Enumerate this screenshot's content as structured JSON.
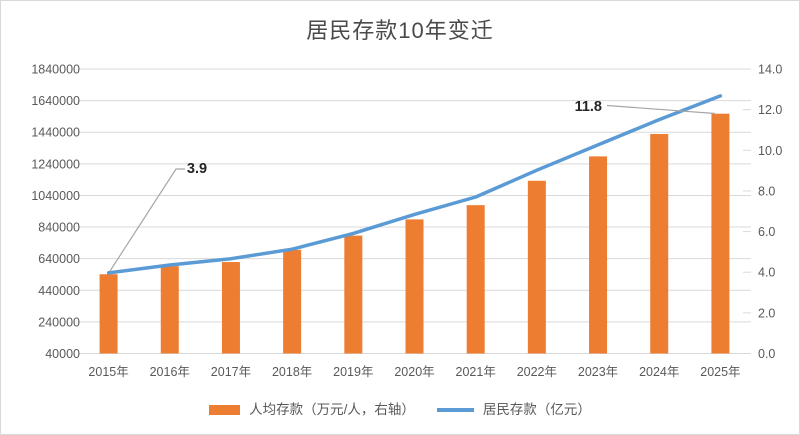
{
  "title": "居民存款10年变迁",
  "colors": {
    "bar": "#ED7D31",
    "line": "#5B9BD5",
    "grid": "#D9D9D9",
    "axis_text": "#595959",
    "title_text": "#4a4a4a",
    "annotation_text": "#262626",
    "leader": "#A6A6A6",
    "frame_border": "#D9D9D9",
    "background": "#FFFFFF"
  },
  "chart_data": {
    "type": "bar",
    "combo": true,
    "title": "居民存款10年变迁",
    "categories": [
      "2015年",
      "2016年",
      "2017年",
      "2018年",
      "2019年",
      "2020年",
      "2021年",
      "2022年",
      "2023年",
      "2024年",
      "2025年"
    ],
    "series": [
      {
        "name": "人均存款（万元/人，右轴）",
        "type": "bar",
        "axis": "right",
        "values": [
          3.9,
          4.3,
          4.5,
          5.1,
          5.8,
          6.6,
          7.3,
          8.5,
          9.7,
          10.8,
          11.8
        ]
      },
      {
        "name": "居民存款（亿元）",
        "type": "line",
        "axis": "left",
        "values": [
          550000,
          600000,
          640000,
          700000,
          800000,
          920000,
          1030000,
          1200000,
          1360000,
          1520000,
          1670000
        ]
      }
    ],
    "left_axis": {
      "min": 40000,
      "max": 1840000,
      "step": 200000,
      "tick_labels": [
        "1840000",
        "1640000",
        "1440000",
        "1240000",
        "1040000",
        "840000",
        "640000",
        "440000",
        "240000",
        "40000"
      ]
    },
    "right_axis": {
      "min": 0,
      "max": 14,
      "step": 2,
      "tick_labels": [
        "14.0",
        "12.0",
        "10.0",
        "8.0",
        "6.0",
        "4.0",
        "2.0",
        "0.0"
      ]
    },
    "annotations": [
      {
        "text": "3.9",
        "series": "人均存款（万元/人，右轴）",
        "category": "2015年",
        "category_index": 0
      },
      {
        "text": "11.8",
        "series": "人均存款（万元/人，右轴）",
        "category": "2025年",
        "category_index": 10
      }
    ],
    "legend_position": "bottom",
    "grid": true
  }
}
